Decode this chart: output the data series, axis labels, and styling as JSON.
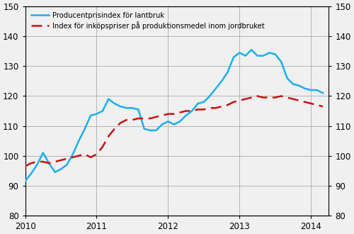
{
  "legend1": "Producentprisindex för lantbruk",
  "legend2": "Index för inköpspriser på produktionsmedel inom jordbruket",
  "line1_color": "#1AAFED",
  "line2_color": "#CC1111",
  "ylim": [
    80,
    150
  ],
  "yticks": [
    80,
    90,
    100,
    110,
    120,
    130,
    140,
    150
  ],
  "xtick_positions": [
    2010,
    2011,
    2012,
    2013,
    2014
  ],
  "xtick_labels": [
    "2010",
    "2011",
    "2012",
    "2013",
    "2014"
  ],
  "xlim_start": 2010.0,
  "xlim_end": 2014.25,
  "blue_y": [
    91.5,
    94.0,
    97.0,
    101.0,
    97.5,
    94.5,
    95.5,
    97.0,
    100.5,
    105.0,
    109.0,
    113.5,
    114.0,
    115.0,
    119.0,
    117.5,
    116.5,
    116.0,
    116.0,
    115.5,
    109.0,
    108.5,
    108.5,
    110.5,
    111.5,
    110.5,
    111.5,
    113.5,
    115.0,
    117.5,
    118.0,
    120.0,
    122.5,
    125.0,
    128.0,
    133.0,
    134.5,
    133.5,
    135.5,
    133.5,
    133.5,
    134.5,
    134.0,
    131.5,
    126.0,
    124.0,
    123.5,
    122.5,
    122.0,
    122.0,
    121.0
  ],
  "red_y": [
    96.5,
    97.5,
    98.0,
    98.0,
    97.5,
    98.0,
    98.5,
    99.0,
    99.5,
    100.0,
    100.5,
    99.5,
    100.5,
    103.0,
    106.5,
    109.0,
    111.0,
    112.0,
    112.0,
    112.5,
    112.5,
    112.5,
    113.0,
    113.5,
    114.0,
    114.0,
    114.5,
    115.0,
    115.0,
    115.5,
    115.5,
    116.0,
    116.0,
    116.5,
    117.0,
    118.0,
    118.5,
    119.0,
    119.5,
    120.0,
    119.5,
    119.5,
    119.5,
    120.0,
    119.5,
    119.0,
    118.5,
    118.0,
    117.5,
    117.0,
    116.5
  ],
  "bg_color": "#f0f0f0",
  "grid_color": "#aaaaaa",
  "face_color": "#f0f0f0"
}
